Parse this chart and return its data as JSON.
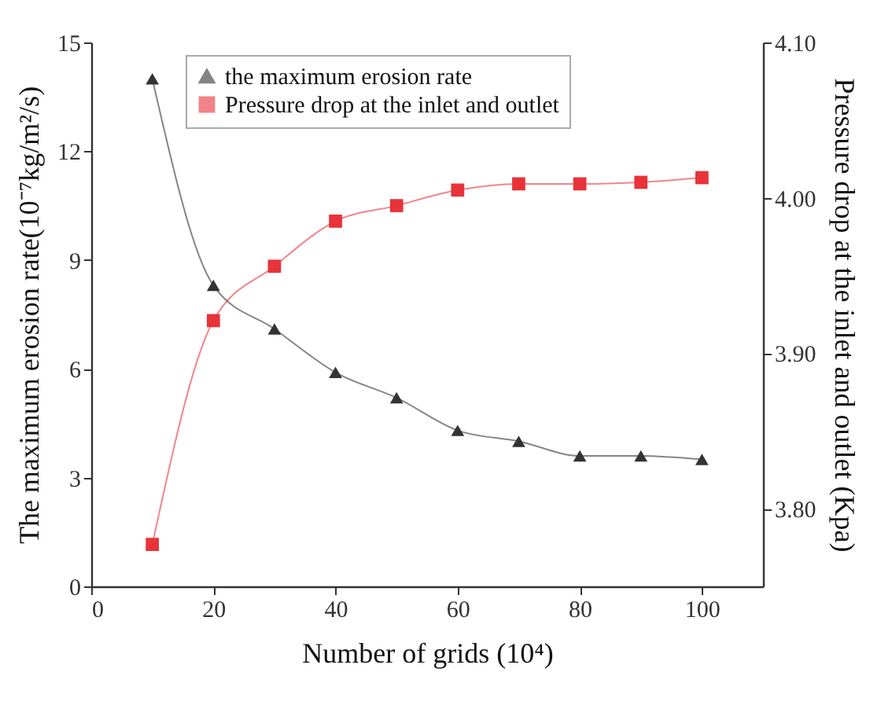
{
  "chart_data": {
    "type": "line",
    "xlabel": "Number of grids (10⁴)",
    "ylabel": "The maximum erosion rate(10⁻⁷kg/m²/s)",
    "y2label": "Pressure drop at the inlet and outlet (Kpa)",
    "x": [
      10,
      20,
      30,
      40,
      50,
      60,
      70,
      80,
      90,
      100
    ],
    "series": [
      {
        "name": "the maximum erosion rate",
        "color": "#333333",
        "marker": "triangle",
        "values": [
          14.0,
          8.3,
          7.1,
          5.9,
          5.2,
          4.3,
          4.0,
          3.6,
          3.6,
          3.5
        ]
      },
      {
        "name": "Pressure drop at the inlet and outlet",
        "color": "#e8333a",
        "marker": "square",
        "axis": "y2",
        "values": [
          3.777,
          3.921,
          3.956,
          3.985,
          3.995,
          4.005,
          4.009,
          4.009,
          4.01,
          4.013
        ]
      }
    ],
    "xlim": [
      0,
      110
    ],
    "xticks": [
      0,
      20,
      40,
      60,
      80,
      100
    ],
    "ylim": [
      0,
      15
    ],
    "yticks": [
      0,
      3,
      6,
      9,
      12,
      15
    ],
    "y2lim": [
      3.75,
      4.1
    ],
    "y2ticks": [
      {
        "value": 3.8,
        "label": "3.80"
      },
      {
        "value": 3.9,
        "label": "3.90"
      },
      {
        "value": 4.0,
        "label": "4.00"
      },
      {
        "value": 4.1,
        "label": "4.10"
      }
    ],
    "grid": false,
    "legend": "top",
    "line_style": "solid"
  }
}
